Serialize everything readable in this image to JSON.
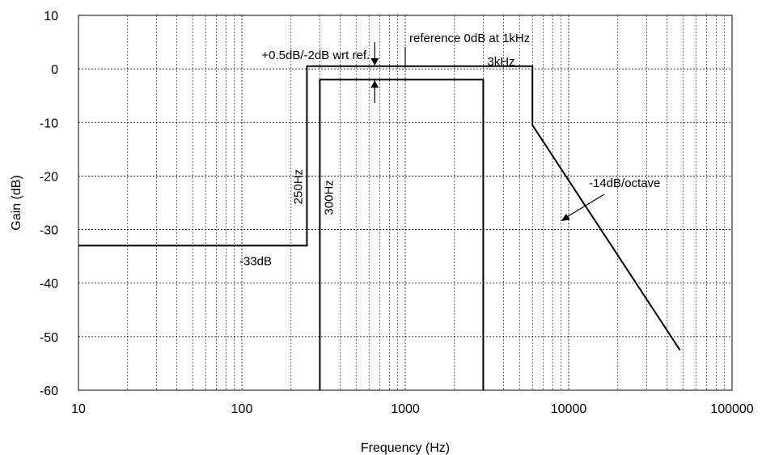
{
  "chart_data": {
    "type": "line",
    "xlabel": "Frequency (Hz)",
    "ylabel": "Gain (dB)",
    "xscale": "log",
    "xlim": [
      10,
      100000
    ],
    "ylim": [
      -60,
      10
    ],
    "grid": true,
    "x_ticks": [
      {
        "value": 10,
        "label": "10"
      },
      {
        "value": 100,
        "label": "100"
      },
      {
        "value": 1000,
        "label": "1000"
      },
      {
        "value": 10000,
        "label": "10000"
      },
      {
        "value": 100000,
        "label": "100000"
      }
    ],
    "y_ticks": [
      {
        "value": 10,
        "label": "10"
      },
      {
        "value": 0,
        "label": "0"
      },
      {
        "value": -10,
        "label": "-10"
      },
      {
        "value": -20,
        "label": "-20"
      },
      {
        "value": -30,
        "label": "-30"
      },
      {
        "value": -40,
        "label": "-40"
      },
      {
        "value": -50,
        "label": "-50"
      },
      {
        "value": -60,
        "label": "-60"
      }
    ],
    "series": [
      {
        "x": [
          10,
          250,
          250,
          6000,
          6000,
          48000
        ],
        "y": [
          -33,
          -33,
          0.5,
          0.5,
          -10.5,
          -52.5
        ]
      },
      {
        "x": [
          300,
          300,
          3000,
          3000
        ],
        "y": [
          -60,
          -2,
          -2,
          -60
        ]
      }
    ],
    "annotations": {
      "tolerance": {
        "text": "+0.5dB/-2dB wrt ref.",
        "x": 650,
        "y_top": 0.5,
        "y_bottom": -2
      },
      "reference": {
        "text": "reference 0dB at 1kHz",
        "x": 1000,
        "y": 0
      },
      "f3k": {
        "text": "3kHz"
      },
      "f250": {
        "text": "250Hz"
      },
      "f300": {
        "text": "300Hz"
      },
      "floor": {
        "text": "-33dB"
      },
      "slope": {
        "text": "-14dB/octave",
        "target_x": 9000,
        "target_y": -28.4
      }
    }
  }
}
